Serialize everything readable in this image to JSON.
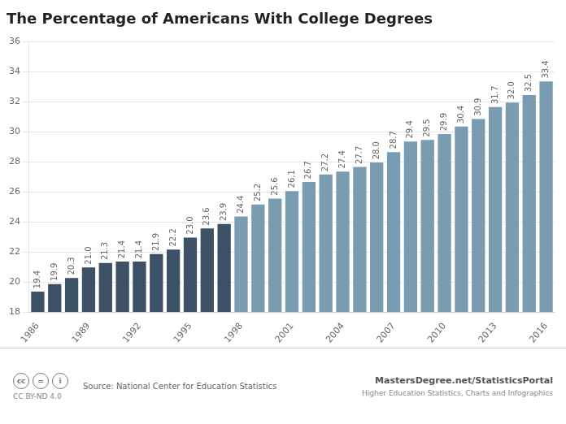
{
  "chart_data": {
    "type": "bar",
    "title": "The Percentage of Americans With College Degrees",
    "categories": [
      1986,
      null,
      null,
      1989,
      null,
      null,
      1992,
      null,
      null,
      1995,
      null,
      null,
      1998,
      null,
      null,
      2001,
      null,
      null,
      2004,
      null,
      null,
      2007,
      null,
      null,
      2010,
      null,
      null,
      2013,
      null,
      null,
      2016
    ],
    "values": [
      19.4,
      19.9,
      20.3,
      21.0,
      21.3,
      21.4,
      21.4,
      21.9,
      22.2,
      23.0,
      23.6,
      23.9,
      24.4,
      25.2,
      25.6,
      26.1,
      26.7,
      27.2,
      27.4,
      27.7,
      28.0,
      28.7,
      29.4,
      29.5,
      29.9,
      30.4,
      30.9,
      31.7,
      32.0,
      32.5,
      33.4
    ],
    "value_labels": [
      "19.4",
      "19.9",
      "20.3",
      "21.0",
      "21.3",
      "21.4",
      "21.4",
      "21.9",
      "22.2",
      "23.0",
      "23.6",
      "23.9",
      "24.4",
      "25.2",
      "25.6",
      "26.1",
      "26.7",
      "27.2",
      "27.4",
      "27.7",
      "28.0",
      "28.7",
      "29.4",
      "29.5",
      "29.9",
      "30.4",
      "30.9",
      "31.7",
      "32.0",
      "32.5",
      "33.4"
    ],
    "colors": [
      "#3d5166",
      "#3d5166",
      "#3d5166",
      "#3d5166",
      "#3d5166",
      "#3d5166",
      "#3d5166",
      "#3d5166",
      "#3d5166",
      "#3d5166",
      "#3d5166",
      "#3d5166",
      "#7a9cb0",
      "#7a9cb0",
      "#7a9cb0",
      "#7a9cb0",
      "#7a9cb0",
      "#7a9cb0",
      "#7a9cb0",
      "#7a9cb0",
      "#7a9cb0",
      "#7a9cb0",
      "#7a9cb0",
      "#7a9cb0",
      "#7a9cb0",
      "#7a9cb0",
      "#7a9cb0",
      "#7a9cb0",
      "#7a9cb0",
      "#7a9cb0",
      "#7a9cb0"
    ],
    "ylim": [
      18,
      36
    ],
    "yticks": [
      18,
      20,
      22,
      24,
      26,
      28,
      30,
      32,
      34,
      36
    ],
    "grid": true,
    "data_labels": true,
    "annotations": [
      "Source: National Center for Education Statistics",
      "MastersDegree.net/StatisticsPortal",
      "Higher Education Statistics, Charts and Infographics",
      "CC BY-ND 4.0",
      "cc",
      "=",
      "i"
    ]
  }
}
